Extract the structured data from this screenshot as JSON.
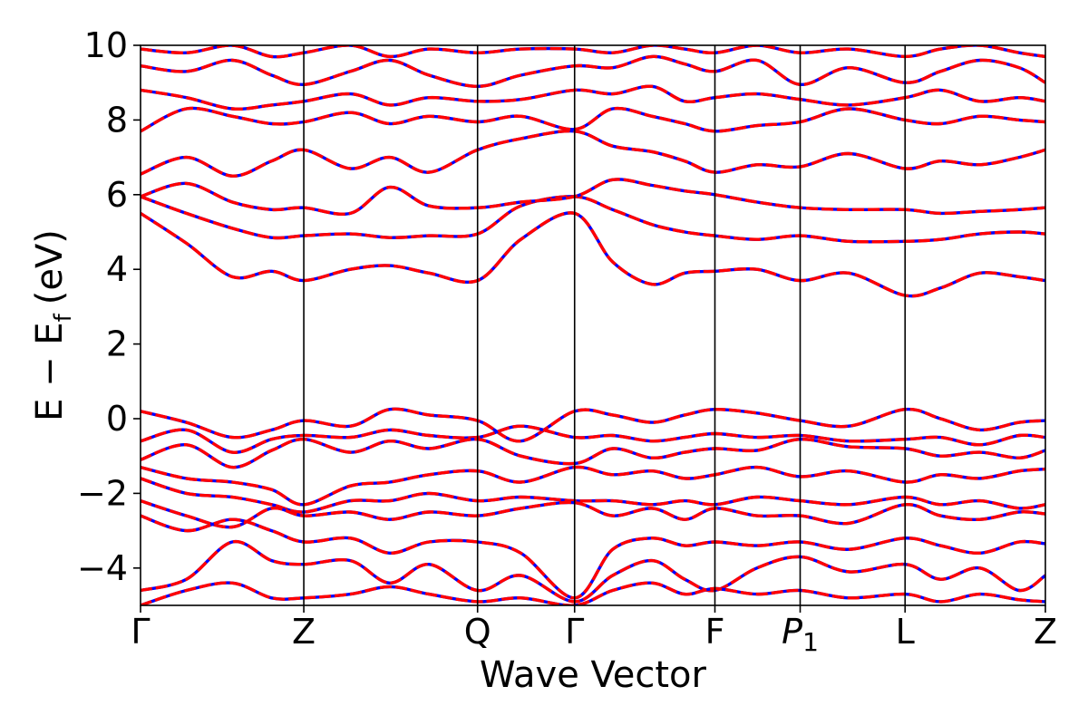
{
  "chart_data": {
    "type": "line",
    "title": "",
    "xlabel": "Wave Vector",
    "ylabel": {
      "main": "E − E",
      "sub": "f",
      "unit": "(eV)"
    },
    "ylim": [
      -5,
      10
    ],
    "yticks": [
      -4,
      -2,
      0,
      2,
      4,
      6,
      8,
      10
    ],
    "ytick_labels": [
      "−4",
      "−2",
      "0",
      "2",
      "4",
      "6",
      "8",
      "10"
    ],
    "xlim": [
      0,
      6.9
    ],
    "xticks": [
      0,
      1.245,
      2.57,
      3.31,
      4.38,
      5.03,
      5.83,
      6.9
    ],
    "xtick_labels": [
      {
        "main": "Γ"
      },
      {
        "main": "Z"
      },
      {
        "main": "Q"
      },
      {
        "main": "Γ"
      },
      {
        "main": "F"
      },
      {
        "main": "P",
        "sub": "1",
        "italic": true
      },
      {
        "main": "L"
      },
      {
        "main": "Z"
      }
    ],
    "grid": false,
    "colors": {
      "overlay": "#ff0000",
      "base": "#0000ff",
      "axis": "#000000"
    },
    "series": [
      {
        "name": "",
        "style": "red-dashed-over-blue",
        "x": [
          0,
          0.35,
          0.7,
          1.0,
          1.245,
          1.6,
          1.9,
          2.2,
          2.57,
          2.9,
          3.31,
          3.6,
          3.9,
          4.15,
          4.38,
          4.7,
          5.03,
          5.4,
          5.83,
          6.1,
          6.4,
          6.7,
          6.9
        ],
        "y": [
          5.5,
          4.7,
          3.8,
          3.95,
          3.7,
          4.0,
          4.1,
          3.9,
          3.7,
          4.8,
          5.5,
          4.2,
          3.6,
          3.9,
          3.95,
          4.0,
          3.7,
          3.9,
          3.3,
          3.5,
          3.9,
          3.8,
          3.7
        ]
      },
      {
        "name": "",
        "style": "red-dashed-over-blue",
        "x": [
          0,
          0.35,
          0.7,
          1.0,
          1.245,
          1.6,
          1.9,
          2.2,
          2.57,
          2.9,
          3.31,
          3.6,
          3.9,
          4.15,
          4.38,
          4.7,
          5.03,
          5.4,
          5.83,
          6.1,
          6.4,
          6.7,
          6.9
        ],
        "y": [
          5.95,
          5.5,
          5.1,
          4.85,
          4.9,
          4.95,
          4.85,
          4.9,
          4.95,
          5.7,
          5.95,
          5.6,
          5.2,
          5.0,
          4.9,
          4.8,
          4.9,
          4.75,
          4.75,
          4.8,
          4.95,
          5.0,
          4.95
        ]
      },
      {
        "name": "",
        "style": "red-dashed-over-blue",
        "x": [
          0,
          0.35,
          0.7,
          1.0,
          1.245,
          1.6,
          1.9,
          2.2,
          2.57,
          2.9,
          3.31,
          3.6,
          3.9,
          4.15,
          4.38,
          4.7,
          5.03,
          5.4,
          5.83,
          6.1,
          6.4,
          6.7,
          6.9
        ],
        "y": [
          5.95,
          6.3,
          5.8,
          5.6,
          5.65,
          5.5,
          6.2,
          5.7,
          5.65,
          5.8,
          5.95,
          6.4,
          6.25,
          6.1,
          6.0,
          5.8,
          5.65,
          5.6,
          5.6,
          5.5,
          5.55,
          5.6,
          5.65
        ]
      },
      {
        "name": "",
        "style": "red-dashed-over-blue",
        "x": [
          0,
          0.35,
          0.7,
          1.0,
          1.245,
          1.6,
          1.9,
          2.2,
          2.57,
          2.9,
          3.31,
          3.6,
          3.9,
          4.15,
          4.38,
          4.7,
          5.03,
          5.4,
          5.83,
          6.1,
          6.4,
          6.7,
          6.9
        ],
        "y": [
          6.55,
          7.0,
          6.5,
          6.9,
          7.2,
          6.7,
          7.0,
          6.6,
          7.2,
          7.5,
          7.7,
          7.3,
          7.15,
          6.9,
          6.6,
          6.8,
          6.75,
          7.1,
          6.7,
          6.9,
          6.8,
          7.0,
          7.2
        ]
      },
      {
        "name": "",
        "style": "red-dashed-over-blue",
        "x": [
          0,
          0.35,
          0.7,
          1.0,
          1.245,
          1.6,
          1.9,
          2.2,
          2.57,
          2.9,
          3.31,
          3.6,
          3.9,
          4.15,
          4.38,
          4.7,
          5.03,
          5.4,
          5.83,
          6.1,
          6.4,
          6.7,
          6.9
        ],
        "y": [
          7.7,
          8.3,
          8.1,
          7.9,
          7.95,
          8.2,
          7.9,
          8.1,
          7.95,
          8.1,
          7.75,
          8.3,
          8.1,
          7.9,
          7.7,
          7.85,
          7.95,
          8.3,
          8.0,
          7.9,
          8.1,
          8.0,
          7.95
        ]
      },
      {
        "name": "",
        "style": "red-dashed-over-blue",
        "x": [
          0,
          0.35,
          0.7,
          1.0,
          1.245,
          1.6,
          1.9,
          2.2,
          2.57,
          2.9,
          3.31,
          3.6,
          3.9,
          4.15,
          4.38,
          4.7,
          5.03,
          5.4,
          5.83,
          6.1,
          6.4,
          6.7,
          6.9
        ],
        "y": [
          8.8,
          8.6,
          8.3,
          8.4,
          8.5,
          8.7,
          8.4,
          8.6,
          8.5,
          8.55,
          8.8,
          8.7,
          8.9,
          8.5,
          8.6,
          8.7,
          8.55,
          8.4,
          8.6,
          8.8,
          8.5,
          8.6,
          8.5
        ]
      },
      {
        "name": "",
        "style": "red-dashed-over-blue",
        "x": [
          0,
          0.35,
          0.7,
          1.0,
          1.245,
          1.6,
          1.9,
          2.2,
          2.57,
          2.9,
          3.31,
          3.6,
          3.9,
          4.15,
          4.38,
          4.7,
          5.03,
          5.4,
          5.83,
          6.1,
          6.4,
          6.7,
          6.9
        ],
        "y": [
          9.45,
          9.3,
          9.6,
          9.2,
          8.95,
          9.3,
          9.6,
          9.2,
          8.9,
          9.2,
          9.45,
          9.4,
          9.7,
          9.5,
          9.3,
          9.6,
          8.95,
          9.4,
          9.0,
          9.3,
          9.6,
          9.4,
          9.0
        ]
      },
      {
        "name": "",
        "style": "red-dashed-over-blue",
        "x": [
          0,
          0.35,
          0.7,
          1.0,
          1.245,
          1.6,
          1.9,
          2.2,
          2.57,
          2.9,
          3.31,
          3.6,
          3.9,
          4.15,
          4.38,
          4.7,
          5.03,
          5.4,
          5.83,
          6.1,
          6.4,
          6.7,
          6.9
        ],
        "y": [
          9.9,
          9.8,
          10.0,
          9.7,
          9.8,
          10.0,
          9.7,
          9.9,
          9.8,
          9.9,
          9.9,
          9.8,
          10.0,
          9.9,
          9.8,
          10.0,
          9.8,
          9.9,
          9.7,
          9.9,
          10.0,
          9.8,
          9.7
        ]
      },
      {
        "name": "",
        "style": "red-dashed-over-blue",
        "x": [
          0,
          0.35,
          0.7,
          1.0,
          1.245,
          1.6,
          1.9,
          2.2,
          2.57,
          2.9,
          3.31,
          3.6,
          3.9,
          4.15,
          4.38,
          4.7,
          5.03,
          5.4,
          5.83,
          6.1,
          6.4,
          6.7,
          6.9
        ],
        "y": [
          0.2,
          -0.1,
          -0.5,
          -0.3,
          -0.05,
          -0.2,
          0.25,
          0.1,
          -0.05,
          -0.6,
          0.2,
          0.1,
          -0.1,
          0.1,
          0.25,
          0.15,
          -0.05,
          -0.2,
          0.25,
          0.0,
          -0.3,
          -0.1,
          -0.05
        ]
      },
      {
        "name": "",
        "style": "red-dashed-over-blue",
        "x": [
          0,
          0.35,
          0.7,
          1.0,
          1.245,
          1.6,
          1.9,
          2.2,
          2.57,
          2.9,
          3.31,
          3.6,
          3.9,
          4.15,
          4.38,
          4.7,
          5.03,
          5.4,
          5.83,
          6.1,
          6.4,
          6.7,
          6.9
        ],
        "y": [
          -0.6,
          -0.3,
          -0.9,
          -0.55,
          -0.45,
          -0.5,
          -0.3,
          -0.45,
          -0.5,
          -0.2,
          -0.5,
          -0.45,
          -0.6,
          -0.5,
          -0.4,
          -0.5,
          -0.45,
          -0.6,
          -0.55,
          -0.5,
          -0.7,
          -0.45,
          -0.5
        ]
      },
      {
        "name": "",
        "style": "red-dashed-over-blue",
        "x": [
          0,
          0.35,
          0.7,
          1.0,
          1.245,
          1.6,
          1.9,
          2.2,
          2.57,
          2.9,
          3.31,
          3.6,
          3.9,
          4.15,
          4.38,
          4.7,
          5.03,
          5.4,
          5.83,
          6.1,
          6.4,
          6.7,
          6.9
        ],
        "y": [
          -1.1,
          -0.7,
          -1.3,
          -0.85,
          -0.55,
          -0.9,
          -0.6,
          -0.8,
          -0.55,
          -1.0,
          -1.2,
          -0.8,
          -1.05,
          -0.9,
          -0.8,
          -0.85,
          -0.55,
          -0.75,
          -0.8,
          -1.0,
          -0.9,
          -1.05,
          -0.85
        ]
      },
      {
        "name": "",
        "style": "red-dashed-over-blue",
        "x": [
          0,
          0.35,
          0.7,
          1.0,
          1.245,
          1.6,
          1.9,
          2.2,
          2.57,
          2.9,
          3.31,
          3.6,
          3.9,
          4.15,
          4.38,
          4.7,
          5.03,
          5.4,
          5.83,
          6.1,
          6.4,
          6.7,
          6.9
        ],
        "y": [
          -1.3,
          -1.6,
          -1.7,
          -1.9,
          -2.3,
          -1.8,
          -1.7,
          -1.5,
          -1.4,
          -1.7,
          -1.3,
          -1.5,
          -1.4,
          -1.6,
          -1.5,
          -1.3,
          -1.55,
          -1.4,
          -1.7,
          -1.5,
          -1.6,
          -1.4,
          -1.35
        ]
      },
      {
        "name": "",
        "style": "red-dashed-over-blue",
        "x": [
          0,
          0.35,
          0.7,
          1.0,
          1.245,
          1.6,
          1.9,
          2.2,
          2.57,
          2.9,
          3.31,
          3.6,
          3.9,
          4.15,
          4.38,
          4.7,
          5.03,
          5.4,
          5.83,
          6.1,
          6.4,
          6.7,
          6.9
        ],
        "y": [
          -1.6,
          -2.0,
          -2.1,
          -2.3,
          -2.5,
          -2.2,
          -2.2,
          -2.0,
          -2.2,
          -2.1,
          -2.2,
          -2.2,
          -2.3,
          -2.2,
          -2.3,
          -2.1,
          -2.2,
          -2.3,
          -2.1,
          -2.3,
          -2.2,
          -2.4,
          -2.3
        ]
      },
      {
        "name": "",
        "style": "red-dashed-over-blue",
        "x": [
          0,
          0.35,
          0.7,
          1.0,
          1.245,
          1.6,
          1.9,
          2.2,
          2.57,
          2.9,
          3.31,
          3.6,
          3.9,
          4.15,
          4.38,
          4.7,
          5.03,
          5.4,
          5.83,
          6.1,
          6.4,
          6.7,
          6.9
        ],
        "y": [
          -2.2,
          -2.6,
          -2.9,
          -2.4,
          -2.6,
          -2.5,
          -2.7,
          -2.5,
          -2.6,
          -2.4,
          -2.25,
          -2.6,
          -2.4,
          -2.7,
          -2.4,
          -2.6,
          -2.6,
          -2.8,
          -2.3,
          -2.6,
          -2.7,
          -2.5,
          -2.55
        ]
      },
      {
        "name": "",
        "style": "red-dashed-over-blue",
        "x": [
          0,
          0.35,
          0.7,
          1.0,
          1.245,
          1.6,
          1.9,
          2.2,
          2.57,
          2.9,
          3.31,
          3.6,
          3.9,
          4.15,
          4.38,
          4.7,
          5.03,
          5.4,
          5.83,
          6.1,
          6.4,
          6.7,
          6.9
        ],
        "y": [
          -2.6,
          -3.0,
          -2.7,
          -3.0,
          -3.3,
          -3.2,
          -3.6,
          -3.3,
          -3.3,
          -3.6,
          -4.8,
          -3.5,
          -3.2,
          -3.4,
          -3.3,
          -3.4,
          -3.3,
          -3.5,
          -3.2,
          -3.4,
          -3.6,
          -3.3,
          -3.35
        ]
      },
      {
        "name": "",
        "style": "red-dashed-over-blue",
        "x": [
          0,
          0.35,
          0.7,
          1.0,
          1.245,
          1.6,
          1.9,
          2.2,
          2.57,
          2.9,
          3.31,
          3.6,
          3.9,
          4.15,
          4.38,
          4.7,
          5.03,
          5.4,
          5.83,
          6.1,
          6.4,
          6.7,
          6.9
        ],
        "y": [
          -4.6,
          -4.3,
          -3.3,
          -3.8,
          -3.9,
          -3.8,
          -4.4,
          -3.9,
          -4.6,
          -4.2,
          -4.9,
          -4.2,
          -3.8,
          -4.3,
          -4.6,
          -4.0,
          -3.7,
          -4.1,
          -3.9,
          -4.3,
          -4.0,
          -4.6,
          -4.2
        ]
      },
      {
        "name": "",
        "style": "red-dashed-over-blue",
        "x": [
          0,
          0.35,
          0.7,
          1.0,
          1.245,
          1.6,
          1.9,
          2.2,
          2.57,
          2.9,
          3.31,
          3.6,
          3.9,
          4.15,
          4.38,
          4.7,
          5.03,
          5.4,
          5.83,
          6.1,
          6.4,
          6.7,
          6.9
        ],
        "y": [
          -5.0,
          -4.6,
          -4.4,
          -4.8,
          -4.8,
          -4.7,
          -4.5,
          -4.7,
          -4.9,
          -4.8,
          -5.0,
          -4.6,
          -4.4,
          -4.7,
          -4.55,
          -4.7,
          -4.6,
          -4.8,
          -4.7,
          -4.9,
          -4.7,
          -4.85,
          -4.9
        ]
      }
    ]
  }
}
